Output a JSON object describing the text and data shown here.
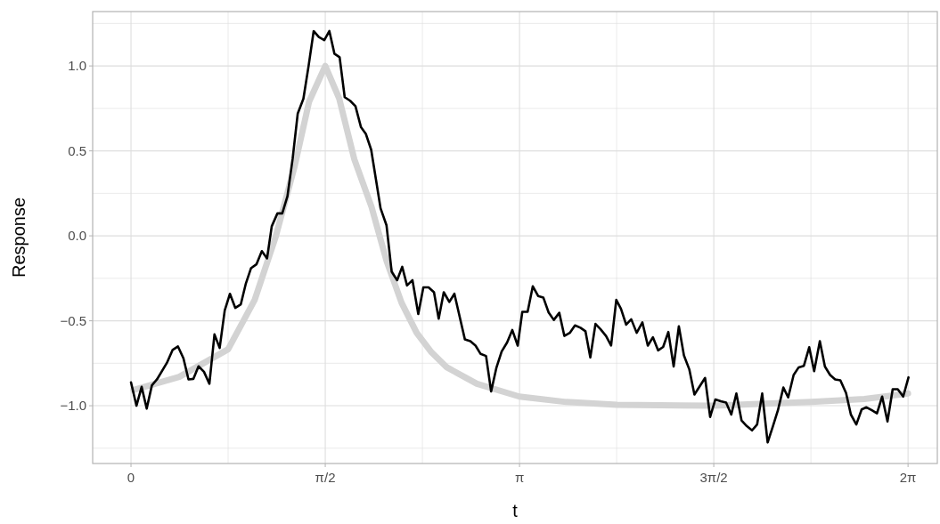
{
  "chart_data": {
    "type": "line",
    "xlabel": "t",
    "ylabel": "Response",
    "xlim": [
      -0.31,
      6.52
    ],
    "ylim": [
      -1.34,
      1.32
    ],
    "xticks": [
      0,
      {
        "value": 0.7854,
        "label": null
      },
      {
        "value": 1.5708,
        "label": "π/2"
      },
      {
        "value": 2.3562,
        "label": null
      },
      {
        "value": 3.1416,
        "label": "π"
      },
      {
        "value": 3.927,
        "label": null
      },
      {
        "value": 4.7124,
        "label": "3π/2"
      },
      {
        "value": 5.4978,
        "label": null
      },
      {
        "value": 6.2832,
        "label": "2π"
      }
    ],
    "yticks": [
      {
        "value": -1.25,
        "label": null
      },
      {
        "value": -1,
        "label": "−1.0"
      },
      {
        "value": -0.75,
        "label": null
      },
      {
        "value": -0.5,
        "label": "−0.5"
      },
      {
        "value": -0.25,
        "label": null
      },
      {
        "value": 0,
        "label": "0.0"
      },
      {
        "value": 0.25,
        "label": null
      },
      0.5,
      {
        "value": 0.75,
        "label": null
      },
      {
        "value": 1,
        "label": "1.0"
      },
      {
        "value": 1.25,
        "label": null
      }
    ],
    "grid": true,
    "marker": "none",
    "series": [
      {
        "color": "#d3d3d3",
        "x": [
          0.02,
          0.39,
          0.785,
          1.0,
          1.17,
          1.32,
          1.44,
          1.571,
          1.684,
          1.806,
          1.945,
          2.066,
          2.188,
          2.31,
          2.43,
          2.554,
          2.797,
          3.14,
          3.52,
          3.93,
          4.71,
          5.5,
          5.93,
          6.283
        ],
        "values": [
          -0.907,
          -0.83,
          -0.668,
          -0.377,
          -0.005,
          0.4,
          0.79,
          1.0,
          0.807,
          0.45,
          0.17,
          -0.147,
          -0.394,
          -0.571,
          -0.686,
          -0.774,
          -0.871,
          -0.946,
          -0.978,
          -0.995,
          -1.0,
          -0.978,
          -0.96,
          -0.928
        ]
      },
      {
        "color": "#000000",
        "x": [
          0,
          0.044,
          0.086,
          0.127,
          0.169,
          0.21,
          0.29,
          0.336,
          0.38,
          0.424,
          0.465,
          0.504,
          0.546,
          0.59,
          0.634,
          0.675,
          0.717,
          0.758,
          0.8,
          0.843,
          0.888,
          0.929,
          0.97,
          1.014,
          1.058,
          1.1,
          1.138,
          1.184,
          1.223,
          1.265,
          1.307,
          1.348,
          1.394,
          1.436,
          1.477,
          1.519,
          1.563,
          1.604,
          1.645,
          1.687,
          1.728,
          1.772,
          1.815,
          1.86,
          1.899,
          1.942,
          1.981,
          2.018,
          2.066,
          2.108,
          2.152,
          2.193,
          2.232,
          2.276,
          2.323,
          2.364,
          2.406,
          2.45,
          2.488,
          2.529,
          2.574,
          2.615,
          2.658,
          2.7,
          2.744,
          2.786,
          2.827,
          2.871,
          2.912,
          2.954,
          2.997,
          3.041,
          3.083,
          3.127,
          3.164,
          3.207,
          3.249,
          3.292,
          3.334,
          3.377,
          3.419,
          3.463,
          3.504,
          3.548,
          3.59,
          3.634,
          3.675,
          3.714,
          3.756,
          3.797,
          3.841,
          3.882,
          3.924,
          3.962,
          4.004,
          4.045,
          4.089,
          4.135,
          4.179,
          4.22,
          4.262,
          4.303,
          4.345,
          4.388,
          4.43,
          4.471,
          4.515,
          4.556,
          4.642,
          4.683,
          4.725,
          4.769,
          4.812,
          4.854,
          4.895,
          4.937,
          4.978,
          5.022,
          5.063,
          5.104,
          5.148,
          5.19,
          5.231,
          5.275,
          5.314,
          5.358,
          5.399,
          5.441,
          5.484,
          5.524,
          5.57,
          5.611,
          5.653,
          5.694,
          5.736,
          5.782,
          5.821,
          5.865,
          5.908,
          5.947,
          5.991,
          6.032,
          6.074,
          6.117,
          6.159,
          6.2,
          6.244,
          6.287
        ],
        "values": [
          -0.862,
          -1.0,
          -0.889,
          -1.017,
          -0.88,
          -0.845,
          -0.748,
          -0.672,
          -0.651,
          -0.721,
          -0.845,
          -0.842,
          -0.768,
          -0.8,
          -0.871,
          -0.58,
          -0.66,
          -0.439,
          -0.341,
          -0.424,
          -0.403,
          -0.28,
          -0.191,
          -0.168,
          -0.09,
          -0.133,
          0.056,
          0.132,
          0.132,
          0.233,
          0.454,
          0.719,
          0.807,
          1.0,
          1.205,
          1.17,
          1.152,
          1.205,
          1.072,
          1.051,
          0.816,
          0.795,
          0.763,
          0.639,
          0.6,
          0.507,
          0.33,
          0.162,
          0.062,
          -0.212,
          -0.261,
          -0.182,
          -0.292,
          -0.261,
          -0.46,
          -0.303,
          -0.303,
          -0.332,
          -0.488,
          -0.332,
          -0.389,
          -0.341,
          -0.477,
          -0.61,
          -0.62,
          -0.646,
          -0.695,
          -0.707,
          -0.916,
          -0.778,
          -0.681,
          -0.628,
          -0.554,
          -0.646,
          -0.447,
          -0.447,
          -0.297,
          -0.354,
          -0.363,
          -0.451,
          -0.495,
          -0.453,
          -0.589,
          -0.571,
          -0.527,
          -0.541,
          -0.562,
          -0.716,
          -0.518,
          -0.55,
          -0.589,
          -0.646,
          -0.377,
          -0.43,
          -0.523,
          -0.491,
          -0.571,
          -0.509,
          -0.646,
          -0.597,
          -0.674,
          -0.654,
          -0.566,
          -0.769,
          -0.532,
          -0.704,
          -0.787,
          -0.934,
          -0.836,
          -1.066,
          -0.963,
          -0.974,
          -0.981,
          -1.052,
          -0.928,
          -1.087,
          -1.119,
          -1.145,
          -1.11,
          -0.928,
          -1.216,
          -1.122,
          -1.027,
          -0.893,
          -0.951,
          -0.819,
          -0.774,
          -0.765,
          -0.656,
          -0.797,
          -0.62,
          -0.769,
          -0.819,
          -0.845,
          -0.85,
          -0.925,
          -1.052,
          -1.11,
          -1.022,
          -1.009,
          -1.027,
          -1.045,
          -0.946,
          -1.093,
          -0.903,
          -0.903,
          -0.946,
          -0.833
        ]
      }
    ]
  }
}
